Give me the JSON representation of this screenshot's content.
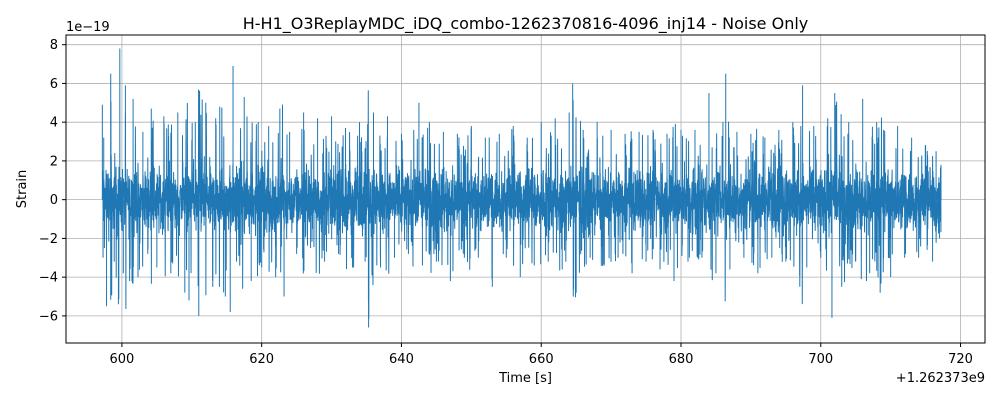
{
  "chart_data": {
    "type": "line",
    "title": "H-H1_O3ReplayMDC_iDQ_combo-1262370816-4096_inj14 - Noise Only",
    "xlabel": "Time [s]",
    "ylabel": "Strain",
    "x_offset_label": "+1.262373e9",
    "y_scale_label": "1e−19",
    "xlim": [
      592,
      723.5
    ],
    "ylim": [
      -7.4,
      8.5
    ],
    "x_ticks": [
      600,
      620,
      640,
      660,
      680,
      700,
      720
    ],
    "x_tick_labels": [
      "600",
      "620",
      "640",
      "660",
      "680",
      "700",
      "720"
    ],
    "y_ticks": [
      -6,
      -4,
      -2,
      0,
      2,
      4,
      6,
      8
    ],
    "y_tick_labels": [
      "−6",
      "−4",
      "−2",
      "0",
      "2",
      "4",
      "6",
      "8"
    ],
    "grid": true,
    "color": "#1f77b4",
    "series": [
      {
        "values": [
          [
            597.2,
            4.9
          ],
          [
            597.3,
            -3.0
          ],
          [
            597.4,
            3.2
          ],
          [
            597.5,
            -2.5
          ],
          [
            597.8,
            -5.5
          ],
          [
            598.4,
            6.5
          ],
          [
            598.9,
            -3.2
          ],
          [
            599.5,
            -5.4
          ],
          [
            599.7,
            7.8
          ],
          [
            600.2,
            -3.8
          ],
          [
            600.5,
            5.9
          ],
          [
            601.1,
            -4.2
          ],
          [
            601.6,
            5.2
          ],
          [
            602.3,
            -4.0
          ],
          [
            603.0,
            3.5
          ],
          [
            603.7,
            -2.8
          ],
          [
            604.2,
            4.7
          ],
          [
            605.0,
            -3.5
          ],
          [
            606.0,
            4.3
          ],
          [
            607.0,
            -3.8
          ],
          [
            608.0,
            4.5
          ],
          [
            609.0,
            -4.8
          ],
          [
            609.6,
            -5.2
          ],
          [
            610.5,
            4.0
          ],
          [
            611.0,
            -6.0
          ],
          [
            612.0,
            5.0
          ],
          [
            613.0,
            -4.5
          ],
          [
            614.0,
            4.8
          ],
          [
            614.8,
            -5.0
          ],
          [
            615.5,
            -5.8
          ],
          [
            615.9,
            6.9
          ],
          [
            616.4,
            -3.2
          ],
          [
            617.5,
            5.3
          ],
          [
            618.5,
            -4.2
          ],
          [
            619.5,
            4.0
          ],
          [
            620.0,
            -3.5
          ],
          [
            621.0,
            3.8
          ],
          [
            622.0,
            -4.0
          ],
          [
            622.6,
            4.7
          ],
          [
            623.2,
            -5.0
          ],
          [
            624.0,
            3.5
          ],
          [
            625.0,
            -2.8
          ],
          [
            626.0,
            4.5
          ],
          [
            627.0,
            -2.5
          ],
          [
            628.0,
            4.2
          ],
          [
            629.0,
            -3.2
          ],
          [
            630.0,
            4.3
          ],
          [
            631.0,
            -2.8
          ],
          [
            632.0,
            3.7
          ],
          [
            633.0,
            -3.5
          ],
          [
            634.0,
            4.0
          ],
          [
            634.8,
            -3.2
          ],
          [
            635.3,
            -6.6
          ],
          [
            636.0,
            4.5
          ],
          [
            637.0,
            -3.5
          ],
          [
            638.0,
            4.3
          ],
          [
            639.0,
            -3.0
          ],
          [
            640.0,
            3.4
          ],
          [
            641.0,
            -2.8
          ],
          [
            642.5,
            5.0
          ],
          [
            643.0,
            -3.4
          ],
          [
            644.0,
            4.0
          ],
          [
            645.0,
            -3.2
          ],
          [
            646.0,
            3.5
          ],
          [
            647.0,
            -4.2
          ],
          [
            648.0,
            3.4
          ],
          [
            649.0,
            -3.0
          ],
          [
            650.0,
            3.8
          ],
          [
            651.0,
            -3.0
          ],
          [
            652.0,
            3.2
          ],
          [
            653.0,
            -4.5
          ],
          [
            654.0,
            3.4
          ],
          [
            655.0,
            -3.0
          ],
          [
            656.0,
            3.8
          ],
          [
            657.0,
            -4.0
          ],
          [
            658.0,
            3.2
          ],
          [
            659.0,
            -3.4
          ],
          [
            660.0,
            4.0
          ],
          [
            661.0,
            -3.2
          ],
          [
            662.0,
            4.2
          ],
          [
            663.0,
            -3.6
          ],
          [
            664.0,
            4.5
          ],
          [
            664.5,
            6.0
          ],
          [
            665.0,
            -4.8
          ],
          [
            666.0,
            3.6
          ],
          [
            667.0,
            -3.0
          ],
          [
            668.0,
            4.0
          ],
          [
            669.0,
            -3.4
          ],
          [
            670.0,
            3.6
          ],
          [
            671.0,
            -3.0
          ],
          [
            672.0,
            3.4
          ],
          [
            673.0,
            -3.8
          ],
          [
            674.0,
            3.5
          ],
          [
            675.0,
            -3.2
          ],
          [
            676.0,
            3.6
          ],
          [
            677.0,
            -3.6
          ],
          [
            678.0,
            3.4
          ],
          [
            679.0,
            -4.2
          ],
          [
            680.0,
            3.6
          ],
          [
            681.0,
            -3.2
          ],
          [
            682.0,
            3.6
          ],
          [
            683.0,
            -3.0
          ],
          [
            684.0,
            5.5
          ],
          [
            685.0,
            -3.8
          ],
          [
            686.0,
            4.0
          ],
          [
            686.4,
            6.5
          ],
          [
            687.0,
            -3.6
          ],
          [
            688.0,
            3.5
          ],
          [
            689.0,
            -3.0
          ],
          [
            690.0,
            3.4
          ],
          [
            691.0,
            -3.8
          ],
          [
            692.0,
            3.2
          ],
          [
            693.0,
            -3.0
          ],
          [
            694.0,
            3.6
          ],
          [
            695.0,
            -3.2
          ],
          [
            696.0,
            4.0
          ],
          [
            697.0,
            -4.5
          ],
          [
            697.4,
            5.9
          ],
          [
            698.0,
            -3.5
          ],
          [
            699.0,
            3.8
          ],
          [
            700.0,
            -3.0
          ],
          [
            701.0,
            4.2
          ],
          [
            701.6,
            -6.1
          ],
          [
            702.0,
            5.5
          ],
          [
            703.0,
            -4.5
          ],
          [
            704.0,
            4.0
          ],
          [
            705.0,
            -3.2
          ],
          [
            706.0,
            5.2
          ],
          [
            707.0,
            -3.8
          ],
          [
            708.0,
            4.0
          ],
          [
            708.5,
            -4.8
          ],
          [
            709.0,
            3.6
          ],
          [
            710.0,
            -4.0
          ],
          [
            711.0,
            3.8
          ],
          [
            712.0,
            -3.0
          ],
          [
            713.0,
            3.2
          ],
          [
            714.0,
            -3.0
          ],
          [
            715.0,
            2.8
          ],
          [
            716.0,
            -3.2
          ],
          [
            716.5,
            2.5
          ],
          [
            717.0,
            -2.0
          ],
          [
            717.2,
            1.8
          ]
        ]
      }
    ]
  }
}
